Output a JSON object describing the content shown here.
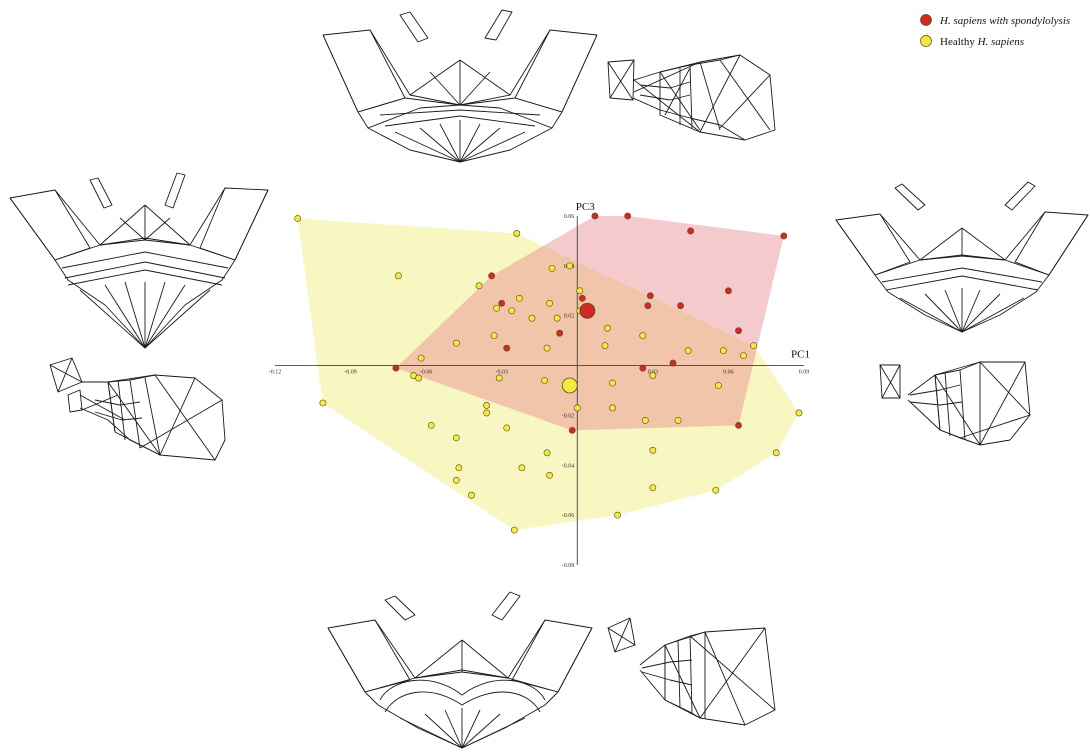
{
  "chart_data": {
    "type": "scatter",
    "title": "",
    "xlabel": "PC1",
    "ylabel": "PC3",
    "xlim": [
      -0.12,
      0.09
    ],
    "ylim": [
      -0.08,
      0.06
    ],
    "x_ticks": [
      "-0.12",
      "-0.09",
      "-0.06",
      "-0.03",
      "0.03",
      "0.06",
      "0.09"
    ],
    "y_ticks": [
      "0.06",
      "0.04",
      "0.02",
      "-0.02",
      "-0.04",
      "-0.06",
      "-0.08"
    ],
    "legend_position": "top-right",
    "legend": [
      {
        "prefix": "",
        "italic": "H. sapiens",
        "suffix": " with spondylolysis",
        "color": "#d12a22",
        "series": "spondylolysis"
      },
      {
        "prefix": "Healthy ",
        "italic": "H. sapiens",
        "suffix": "",
        "color": "#f2ea3c",
        "series": "healthy"
      }
    ],
    "series": [
      {
        "key": "spondylolysis",
        "color": "#d12a22",
        "hull_color": "#e88a8f",
        "centroid": {
          "x": 0.004,
          "y": 0.022
        },
        "points": [
          {
            "x": 0.007,
            "y": 0.06
          },
          {
            "x": 0.02,
            "y": 0.06
          },
          {
            "x": 0.045,
            "y": 0.054
          },
          {
            "x": 0.082,
            "y": 0.052
          },
          {
            "x": -0.034,
            "y": 0.036
          },
          {
            "x": -0.03,
            "y": 0.025
          },
          {
            "x": 0.002,
            "y": 0.027
          },
          {
            "x": 0.029,
            "y": 0.028
          },
          {
            "x": 0.028,
            "y": 0.024
          },
          {
            "x": 0.041,
            "y": 0.024
          },
          {
            "x": 0.06,
            "y": 0.03
          },
          {
            "x": 0.064,
            "y": 0.014
          },
          {
            "x": -0.007,
            "y": 0.013
          },
          {
            "x": -0.028,
            "y": 0.007
          },
          {
            "x": -0.072,
            "y": -0.001
          },
          {
            "x": 0.038,
            "y": 0.001
          },
          {
            "x": 0.026,
            "y": -0.001
          },
          {
            "x": -0.002,
            "y": -0.026
          },
          {
            "x": 0.064,
            "y": -0.024
          }
        ]
      },
      {
        "key": "healthy",
        "color": "#f2ea3c",
        "hull_color": "#f2ee8e",
        "centroid": {
          "x": -0.003,
          "y": -0.008
        },
        "points": [
          {
            "x": -0.111,
            "y": 0.059
          },
          {
            "x": -0.071,
            "y": 0.036
          },
          {
            "x": -0.024,
            "y": 0.053
          },
          {
            "x": -0.01,
            "y": 0.039
          },
          {
            "x": -0.003,
            "y": 0.04
          },
          {
            "x": -0.039,
            "y": 0.032
          },
          {
            "x": -0.023,
            "y": 0.027
          },
          {
            "x": -0.032,
            "y": 0.023
          },
          {
            "x": -0.026,
            "y": 0.022
          },
          {
            "x": -0.011,
            "y": 0.025
          },
          {
            "x": -0.018,
            "y": 0.019
          },
          {
            "x": -0.008,
            "y": 0.019
          },
          {
            "x": 0.001,
            "y": 0.03
          },
          {
            "x": 0.001,
            "y": 0.022
          },
          {
            "x": 0.012,
            "y": 0.015
          },
          {
            "x": 0.026,
            "y": 0.012
          },
          {
            "x": -0.048,
            "y": 0.009
          },
          {
            "x": -0.033,
            "y": 0.012
          },
          {
            "x": -0.012,
            "y": 0.007
          },
          {
            "x": 0.011,
            "y": 0.008
          },
          {
            "x": 0.044,
            "y": 0.006
          },
          {
            "x": 0.058,
            "y": 0.006
          },
          {
            "x": 0.066,
            "y": 0.004
          },
          {
            "x": 0.07,
            "y": 0.008
          },
          {
            "x": -0.062,
            "y": 0.003
          },
          {
            "x": -0.065,
            "y": -0.004
          },
          {
            "x": -0.063,
            "y": -0.005
          },
          {
            "x": -0.031,
            "y": -0.005
          },
          {
            "x": -0.013,
            "y": -0.006
          },
          {
            "x": 0.03,
            "y": -0.004
          },
          {
            "x": 0.014,
            "y": -0.007
          },
          {
            "x": 0.056,
            "y": -0.008
          },
          {
            "x": -0.101,
            "y": -0.015
          },
          {
            "x": -0.036,
            "y": -0.016
          },
          {
            "x": -0.036,
            "y": -0.019
          },
          {
            "x": 0.0,
            "y": -0.017
          },
          {
            "x": -0.028,
            "y": -0.025
          },
          {
            "x": 0.014,
            "y": -0.017
          },
          {
            "x": 0.027,
            "y": -0.022
          },
          {
            "x": 0.04,
            "y": -0.022
          },
          {
            "x": 0.088,
            "y": -0.019
          },
          {
            "x": -0.058,
            "y": -0.024
          },
          {
            "x": -0.048,
            "y": -0.029
          },
          {
            "x": -0.012,
            "y": -0.035
          },
          {
            "x": 0.03,
            "y": -0.034
          },
          {
            "x": 0.079,
            "y": -0.035
          },
          {
            "x": -0.047,
            "y": -0.041
          },
          {
            "x": -0.022,
            "y": -0.041
          },
          {
            "x": -0.011,
            "y": -0.044
          },
          {
            "x": -0.048,
            "y": -0.046
          },
          {
            "x": -0.042,
            "y": -0.052
          },
          {
            "x": 0.03,
            "y": -0.049
          },
          {
            "x": 0.055,
            "y": -0.05
          },
          {
            "x": 0.016,
            "y": -0.06
          },
          {
            "x": -0.025,
            "y": -0.066
          }
        ]
      }
    ]
  }
}
